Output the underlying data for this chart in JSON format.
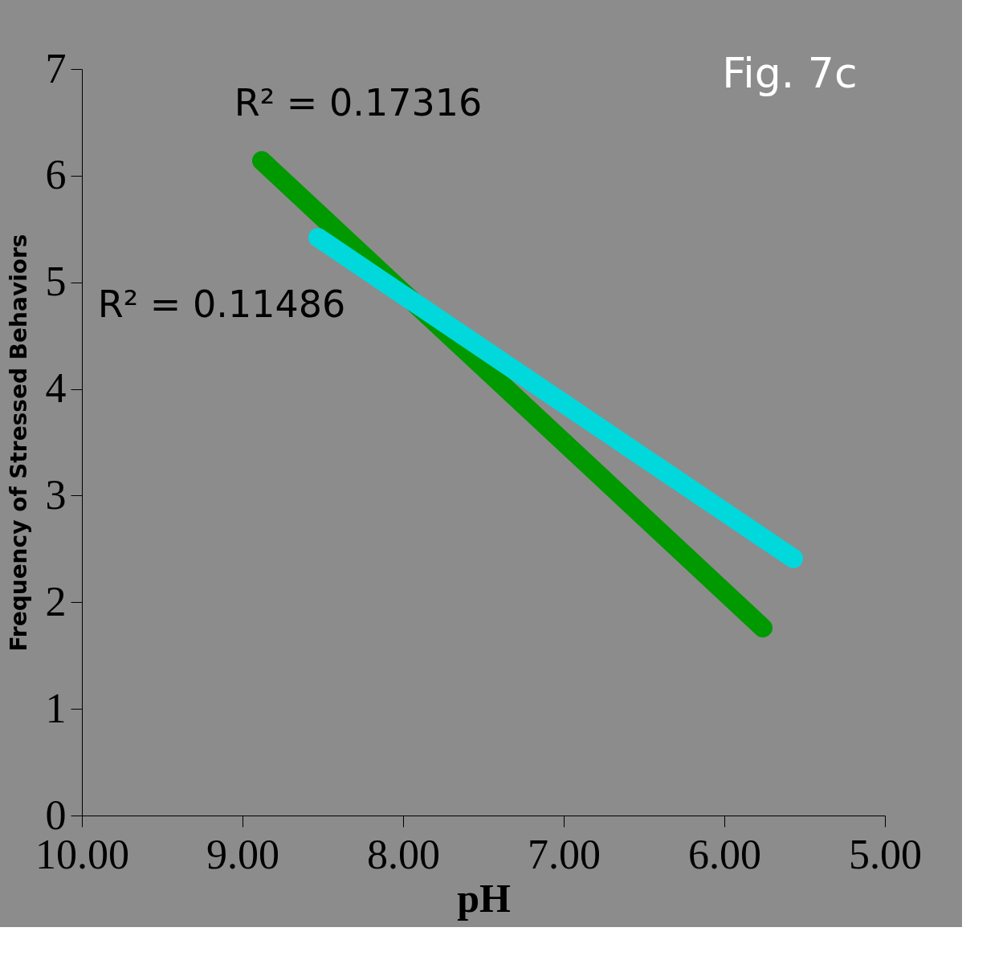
{
  "chart_data": {
    "type": "line",
    "title": "Fig. 7c",
    "xlabel": "pH",
    "ylabel": "Frequency of Stressed Behaviors",
    "series": [
      {
        "color": "#009a00",
        "x": [
          8.88,
          5.76
        ],
        "values": [
          6.14,
          1.76
        ]
      },
      {
        "color": "#00d8dc",
        "x": [
          8.53,
          5.57
        ],
        "values": [
          5.42,
          2.41
        ]
      }
    ],
    "annotations": [
      "R² = 0.17316",
      "R² = 0.11486"
    ],
    "xlim": [
      10,
      5
    ],
    "xticks": [
      {
        "value": 10,
        "label": "10.00"
      },
      {
        "value": 9,
        "label": "9.00"
      },
      {
        "value": 8,
        "label": "8.00"
      },
      {
        "value": 7,
        "label": "7.00"
      },
      {
        "value": 6,
        "label": "6.00"
      },
      {
        "value": 5,
        "label": "5.00"
      }
    ],
    "ylim": [
      0,
      7
    ],
    "yticks": [
      0,
      1,
      2,
      3,
      4,
      5,
      6,
      7
    ],
    "grid": false,
    "line_style": "solid"
  }
}
